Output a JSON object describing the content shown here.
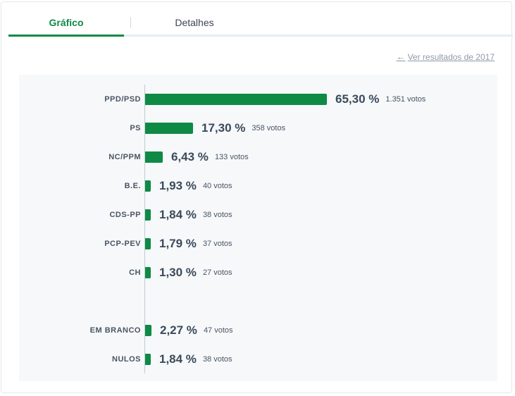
{
  "tabs": [
    {
      "label": "Gráfico",
      "active": true
    },
    {
      "label": "Detalhes",
      "active": false
    }
  ],
  "previous_results_link": "Ver resultados de 2017",
  "colors": {
    "accent": "#0e8a45",
    "panel": "#f6f8fa"
  },
  "chart_data": {
    "type": "bar",
    "orientation": "horizontal",
    "max_percent": 65.3,
    "rows": [
      {
        "party": "PPD/PSD",
        "percent": 65.3,
        "percent_label": "65,30 %",
        "votes_label": "1.351 votos",
        "gap_before": false
      },
      {
        "party": "PS",
        "percent": 17.3,
        "percent_label": "17,30 %",
        "votes_label": "358 votos",
        "gap_before": false
      },
      {
        "party": "NC/PPM",
        "percent": 6.43,
        "percent_label": "6,43 %",
        "votes_label": "133 votos",
        "gap_before": false
      },
      {
        "party": "B.E.",
        "percent": 1.93,
        "percent_label": "1,93 %",
        "votes_label": "40 votos",
        "gap_before": false
      },
      {
        "party": "CDS-PP",
        "percent": 1.84,
        "percent_label": "1,84 %",
        "votes_label": "38 votos",
        "gap_before": false
      },
      {
        "party": "PCP-PEV",
        "percent": 1.79,
        "percent_label": "1,79 %",
        "votes_label": "37 votos",
        "gap_before": false
      },
      {
        "party": "CH",
        "percent": 1.3,
        "percent_label": "1,30 %",
        "votes_label": "27 votos",
        "gap_before": false
      },
      {
        "party": "EM BRANCO",
        "percent": 2.27,
        "percent_label": "2,27 %",
        "votes_label": "47 votos",
        "gap_before": true
      },
      {
        "party": "NULOS",
        "percent": 1.84,
        "percent_label": "1,84 %",
        "votes_label": "38 votos",
        "gap_before": false
      }
    ]
  }
}
